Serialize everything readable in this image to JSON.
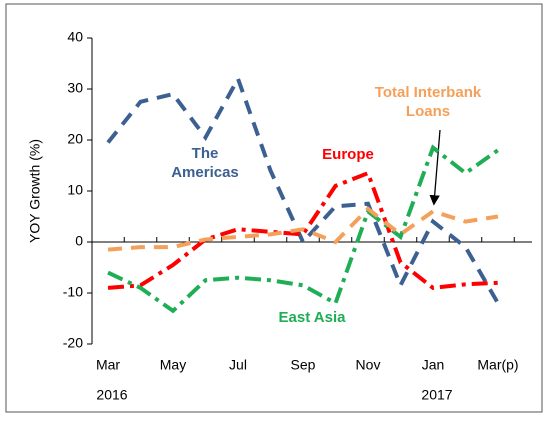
{
  "chart_data": {
    "type": "line",
    "y_label": "YOY Growth (%)",
    "categories": [
      "Mar",
      null,
      "May",
      null,
      "Jul",
      null,
      "Sep",
      null,
      "Nov",
      null,
      "Jan",
      null,
      "Mar(p)"
    ],
    "years": [
      "2016",
      null,
      null,
      null,
      null,
      null,
      null,
      null,
      null,
      null,
      "2017",
      null,
      null
    ],
    "ylim": [
      -20,
      40
    ],
    "yticks": [
      -20,
      -10,
      0,
      10,
      20,
      30,
      40
    ],
    "series": [
      {
        "name": "The Americas",
        "color": "#3b6091",
        "dash": "dash",
        "values": [
          19.5,
          27.5,
          29,
          20.5,
          32,
          14,
          0,
          7,
          7.5,
          -8.5,
          4,
          -1,
          -12
        ]
      },
      {
        "name": "Europe",
        "color": "#ff0000",
        "dash": "dashdot",
        "values": [
          -9,
          -8.5,
          -4.5,
          0.5,
          2.5,
          2,
          1.5,
          11,
          13.5,
          -4,
          -9,
          -8.3,
          -8
        ]
      },
      {
        "name": "East Asia",
        "color": "#1fae55",
        "dash": "dashdot",
        "values": [
          -6,
          -9,
          -13.5,
          -7.5,
          -7,
          -7.5,
          -8.5,
          -12,
          6,
          1,
          18.5,
          13.5,
          18
        ]
      },
      {
        "name": "Total Interbank Loans",
        "color": "#f5a05a",
        "dash": "dash",
        "values": [
          -1.5,
          -1,
          -1,
          0.5,
          1,
          1.5,
          2.5,
          0,
          6.5,
          1.5,
          6,
          4,
          5
        ]
      }
    ],
    "annotations": [
      {
        "lines": [
          "The",
          "Americas"
        ],
        "color": "#3b6091"
      },
      {
        "lines": [
          "Europe"
        ],
        "color": "#ff0000"
      },
      {
        "lines": [
          "East Asia"
        ],
        "color": "#1fae55"
      },
      {
        "lines": [
          "Total Interbank",
          "Loans"
        ],
        "color": "#f5a05a"
      }
    ]
  }
}
